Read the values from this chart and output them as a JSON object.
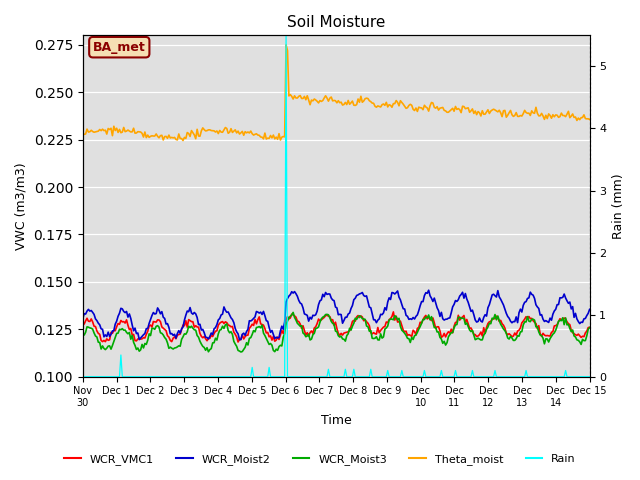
{
  "title": "Soil Moisture",
  "ylabel_left": "VWC (m3/m3)",
  "ylabel_right": "Rain (mm)",
  "xlabel": "Time",
  "xlim_labels": [
    "Nov\n30",
    "Dec 1",
    "Dec 2",
    "Dec 3",
    "Dec 4",
    "Dec 5",
    "Dec 6",
    "Dec 7",
    "Dec 8",
    "Dec 9",
    "Dec\n10",
    "Dec\n11",
    "Dec\n12",
    "Dec\n13",
    "Dec\n14",
    "Dec 15"
  ],
  "ylim_left": [
    0.1,
    0.28
  ],
  "ylim_right": [
    0.0,
    5.5
  ],
  "background_color": "#ffffff",
  "plot_bg_color": "#e0e0e0",
  "annotation_box": "BA_met",
  "annotation_box_color": "#8b0000",
  "annotation_box_bg": "#f5deb3",
  "legend_entries": [
    "WCR_VMC1",
    "WCR_Moist2",
    "WCR_Moist3",
    "Theta_moist",
    "Rain"
  ],
  "legend_colors": [
    "#ff0000",
    "#0000cd",
    "#00aa00",
    "#ffa500",
    "#00ffff"
  ],
  "wcr_vmc1_color": "#ff0000",
  "wcr_moist2_color": "#0000cd",
  "wcr_moist3_color": "#00aa00",
  "theta_moist_color": "#ffa500",
  "rain_color": "#00ffff",
  "num_days": 15,
  "pts_per_day": 24
}
